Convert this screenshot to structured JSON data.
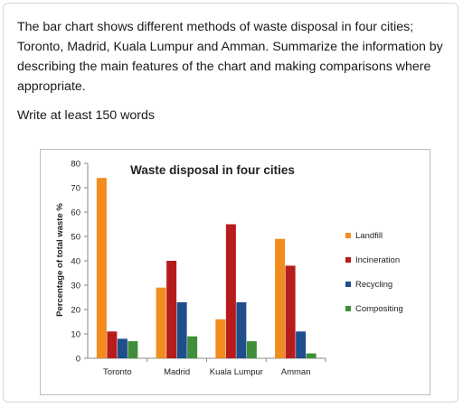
{
  "prompt": {
    "text": "The bar chart shows different methods of waste disposal in four cities; Toronto, Madrid, Kuala Lumpur and Amman. Summarize the information by describing the main features of the chart and making comparisons where appropriate.",
    "instruction": "Write at least 150 words"
  },
  "chart_data": {
    "type": "bar",
    "title": "Waste disposal in four cities",
    "xlabel": "",
    "ylabel": "Percentage of total waste %",
    "categories": [
      "Toronto",
      "Madrid",
      "Kuala Lumpur",
      "Amman"
    ],
    "series": [
      {
        "name": "Landfill",
        "values": [
          74,
          29,
          16,
          49
        ],
        "color": "#f28c1e"
      },
      {
        "name": "Incineration",
        "values": [
          11,
          40,
          55,
          38
        ],
        "color": "#b71c1c"
      },
      {
        "name": "Recycling",
        "values": [
          8,
          23,
          23,
          11
        ],
        "color": "#1f4e8c"
      },
      {
        "name": "Compositing",
        "values": [
          7,
          9,
          7,
          2
        ],
        "color": "#3f8f3a"
      }
    ],
    "ylim": [
      0,
      80
    ],
    "yticks": [
      0,
      10,
      20,
      30,
      40,
      50,
      60,
      70,
      80
    ],
    "grid": false,
    "legend": "right"
  }
}
